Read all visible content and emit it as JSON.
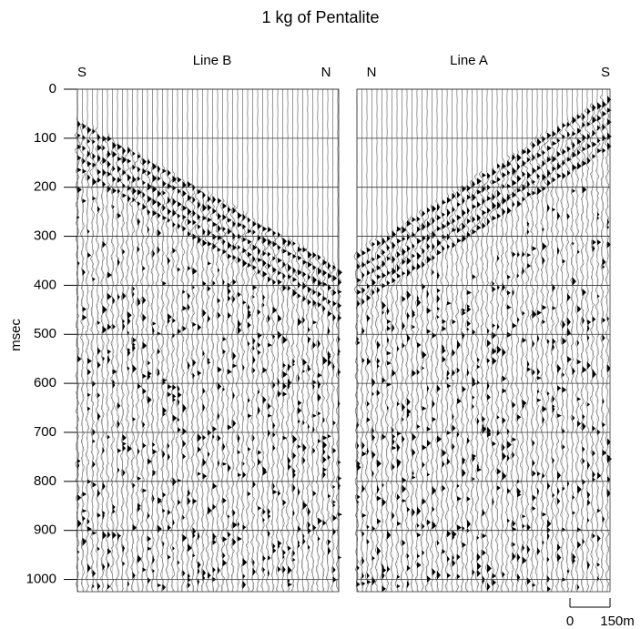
{
  "chart_data": {
    "type": "seismogram",
    "title": "1 kg of Pentalite",
    "y_label": "msec",
    "panels": [
      {
        "name": "Line B",
        "left_end": "S",
        "right_end": "N"
      },
      {
        "name": "Line A",
        "left_end": "N",
        "right_end": "S"
      }
    ],
    "ylim": [
      0,
      1025
    ],
    "yticks": [
      0,
      100,
      200,
      300,
      400,
      500,
      600,
      700,
      800,
      900,
      1000
    ],
    "grid": true,
    "scale_bar": [
      0,
      {
        "value": 150,
        "label": "150m"
      }
    ]
  }
}
